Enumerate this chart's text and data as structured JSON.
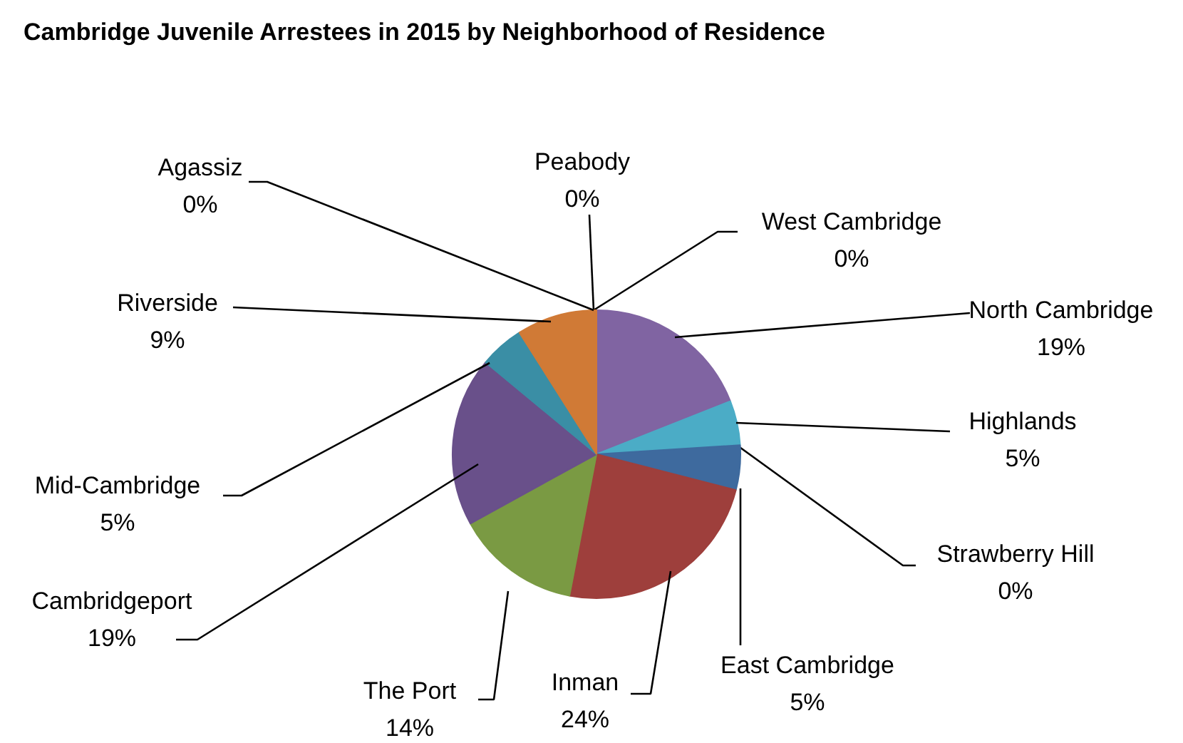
{
  "chart_data": {
    "type": "pie",
    "title": "Cambridge Juvenile Arrestees in 2015 by Neighborhood of Residence",
    "categories": [
      "Peabody",
      "West Cambridge",
      "North Cambridge",
      "Highlands",
      "Strawberry Hill",
      "East Cambridge",
      "Inman",
      "The Port",
      "Cambridgeport",
      "Mid-Cambridge",
      "Riverside",
      "Agassiz"
    ],
    "values": [
      0,
      0,
      19,
      5,
      0,
      5,
      24,
      14,
      19,
      5,
      9,
      0
    ],
    "value_labels": [
      "0%",
      "0%",
      "19%",
      "5%",
      "0%",
      "5%",
      "24%",
      "14%",
      "19%",
      "5%",
      "9%",
      "0%"
    ],
    "colors": [
      "#4f81bd",
      "#c0504d",
      "#8064a2",
      "#4bacc6",
      "#f79646",
      "#3e6a9e",
      "#9e3f3c",
      "#7a9a43",
      "#69508a",
      "#3a8ea5",
      "#d07a36",
      "#2c4d75"
    ]
  }
}
